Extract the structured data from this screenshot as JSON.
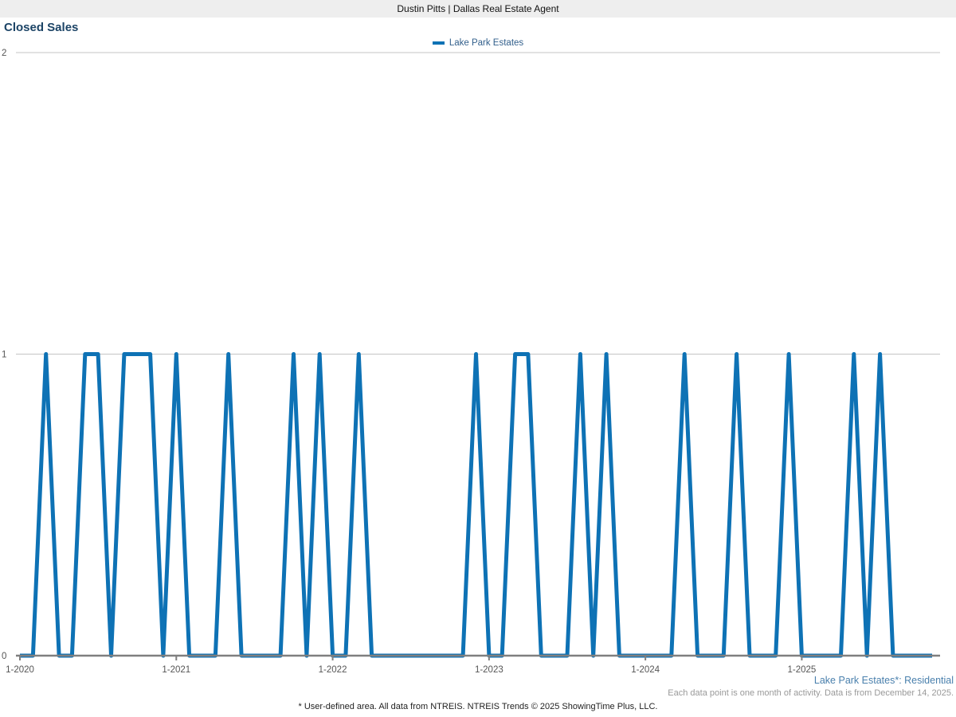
{
  "header": {
    "title": "Dustin Pitts | Dallas Real Estate Agent"
  },
  "page_title": "Closed Sales",
  "legend": {
    "label": "Lake Park Estates",
    "swatch_color": "#0e72b5"
  },
  "footer": {
    "series_note": "Lake Park Estates*: Residential",
    "data_note": "Each data point is one month of activity. Data is from December 14, 2025.",
    "disclaimer": "* User-defined area. All data from NTREIS. NTREIS Trends © 2025 ShowingTime Plus, LLC."
  },
  "colors": {
    "line": "#0e72b5",
    "gridline": "#c4c4c4",
    "axis": "#7f7f7f",
    "tick_text": "#555555",
    "header_bg": "#eeeeee",
    "title_text": "#1c4466"
  },
  "chart_data": {
    "type": "line",
    "title": "Closed Sales",
    "x_unit": "month",
    "start": "1-2020",
    "end": "11-2025",
    "series": [
      {
        "name": "Lake Park Estates",
        "color": "#0e72b5",
        "values": [
          0,
          0,
          1,
          0,
          0,
          1,
          1,
          0,
          1,
          1,
          1,
          0,
          1,
          0,
          0,
          0,
          1,
          0,
          0,
          0,
          0,
          1,
          0,
          1,
          0,
          0,
          1,
          0,
          0,
          0,
          0,
          0,
          0,
          0,
          0,
          1,
          0,
          0,
          1,
          1,
          0,
          0,
          0,
          1,
          0,
          1,
          0,
          0,
          0,
          0,
          0,
          1,
          0,
          0,
          0,
          1,
          0,
          0,
          0,
          1,
          0,
          0,
          0,
          0,
          1,
          0,
          1,
          0,
          0,
          0,
          0
        ]
      }
    ],
    "x_tick_labels": [
      "1-2020",
      "1-2021",
      "1-2022",
      "1-2023",
      "1-2024",
      "1-2025"
    ],
    "x_tick_indices": [
      0,
      12,
      24,
      36,
      48,
      60
    ],
    "y_ticks": [
      0,
      1,
      2
    ],
    "ylim": [
      0,
      2
    ],
    "grid": "horizontal",
    "legend_position": "top-center"
  }
}
